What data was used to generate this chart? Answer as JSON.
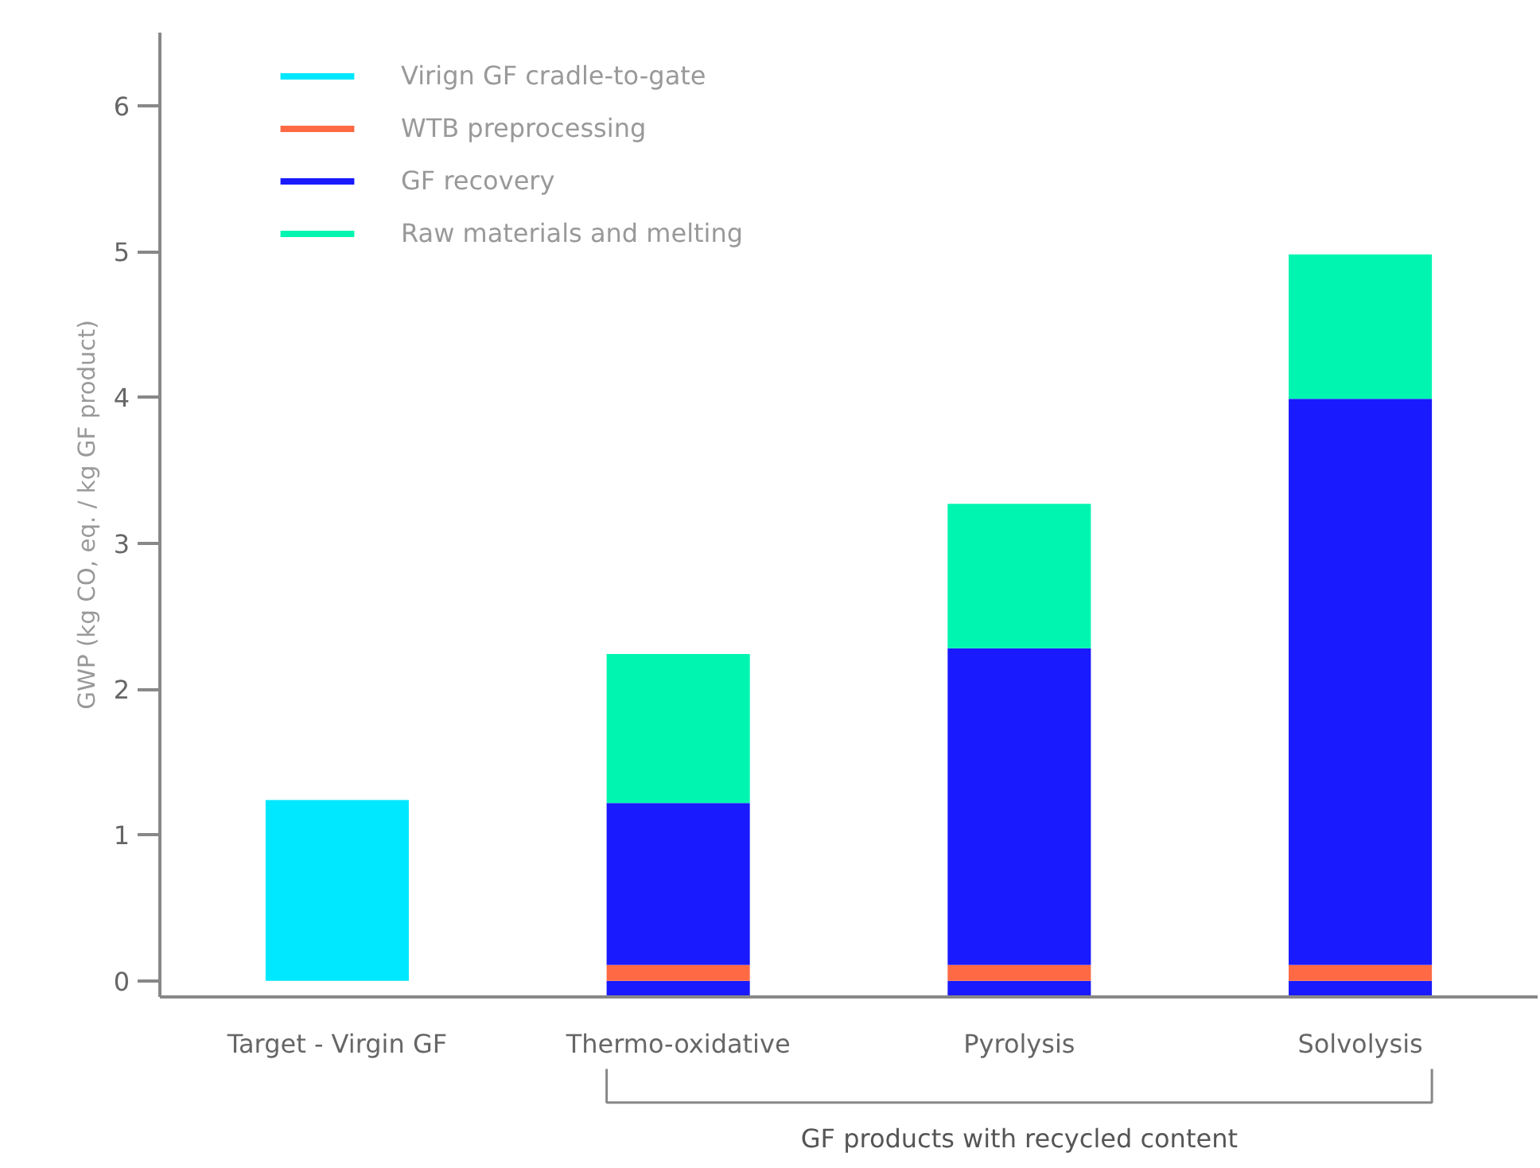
{
  "chart_data": {
    "type": "bar",
    "stacked": true,
    "ylabel": "GWP (kg CO, eq. / kg GF product)",
    "categories": [
      "Target - Virgin GF",
      "Thermo-oxidative",
      "Pyrolysis",
      "Solvolysis"
    ],
    "series": [
      {
        "name": "Virign GF cradle-to-gate",
        "color": "#00e8ff",
        "values": [
          1.24,
          null,
          null,
          null
        ]
      },
      {
        "color": "#1a1aff",
        "values": [
          null,
          -0.1,
          -0.1,
          -0.1
        ]
      },
      {
        "name": "WTB preprocessing",
        "color": "#ff6a45",
        "values": [
          null,
          0.11,
          0.11,
          0.11
        ]
      },
      {
        "name": "GF recovery",
        "color": "#1a1aff",
        "values": [
          null,
          1.11,
          2.17,
          3.88
        ]
      },
      {
        "name": "Raw materials and melting",
        "color": "#00f5b0",
        "values": [
          null,
          1.02,
          0.99,
          0.99
        ]
      }
    ],
    "ylim": [
      -0.11,
      6.5
    ],
    "yticks": [
      0,
      1,
      2,
      3,
      4,
      5,
      6
    ],
    "grid": false,
    "legend": "top left",
    "annotations": [
      {
        "text": "GF products with recycled content"
      }
    ]
  }
}
